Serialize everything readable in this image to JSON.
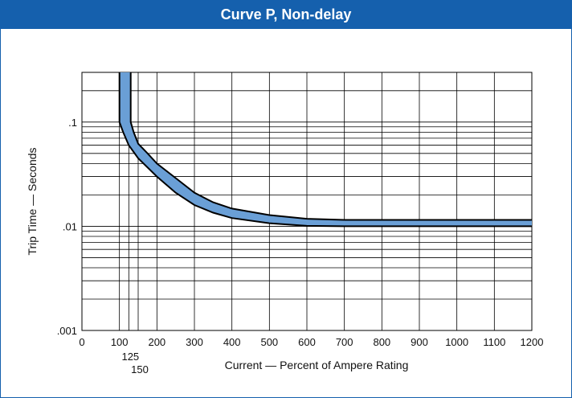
{
  "chart_data": {
    "type": "area",
    "title": "Curve P, Non-delay",
    "xlabel": "Current — Percent of Ampere Rating",
    "ylabel": "Trip Time — Seconds",
    "x_scale": "linear",
    "y_scale": "log",
    "xlim": [
      0,
      1200
    ],
    "ylim": [
      0.001,
      0.3
    ],
    "x_ticks": [
      {
        "value": 0,
        "label": "0"
      },
      {
        "value": 100,
        "label": "100"
      },
      {
        "value": 200,
        "label": "200"
      },
      {
        "value": 300,
        "label": "300"
      },
      {
        "value": 400,
        "label": "400"
      },
      {
        "value": 500,
        "label": "500"
      },
      {
        "value": 600,
        "label": "600"
      },
      {
        "value": 700,
        "label": "700"
      },
      {
        "value": 800,
        "label": "800"
      },
      {
        "value": 900,
        "label": "900"
      },
      {
        "value": 1000,
        "label": "1000"
      },
      {
        "value": 1100,
        "label": "1100"
      },
      {
        "value": 1200,
        "label": "1200"
      }
    ],
    "x_ticks_offset": [
      {
        "value": 125,
        "label": "125"
      },
      {
        "value": 150,
        "label": "150"
      }
    ],
    "y_ticks": [
      {
        "value": 0.1,
        "label": ".1"
      },
      {
        "value": 0.01,
        "label": ".01"
      },
      {
        "value": 0.001,
        "label": ".001"
      }
    ],
    "x_grid": [
      100,
      125,
      150,
      200,
      300,
      400,
      500,
      600,
      700,
      800,
      900,
      1000,
      1100,
      1200
    ],
    "y_grid": [
      0.001,
      0.002,
      0.003,
      0.004,
      0.005,
      0.006,
      0.007,
      0.008,
      0.009,
      0.01,
      0.02,
      0.03,
      0.04,
      0.05,
      0.06,
      0.07,
      0.08,
      0.09,
      0.1,
      0.2
    ],
    "grid": true,
    "band_color": "#6a9fd6",
    "series": [
      {
        "values": [
          [
            100,
            0.3
          ],
          [
            100,
            0.1
          ],
          [
            110,
            0.08
          ],
          [
            125,
            0.06
          ],
          [
            150,
            0.045
          ],
          [
            200,
            0.03
          ],
          [
            250,
            0.021
          ],
          [
            300,
            0.016
          ],
          [
            350,
            0.0135
          ],
          [
            400,
            0.012
          ],
          [
            500,
            0.0107
          ],
          [
            600,
            0.0101
          ],
          [
            700,
            0.01
          ],
          [
            800,
            0.01
          ],
          [
            900,
            0.01
          ],
          [
            1000,
            0.01
          ],
          [
            1100,
            0.01
          ],
          [
            1200,
            0.01
          ]
        ]
      },
      {
        "values": [
          [
            130,
            0.3
          ],
          [
            130,
            0.1
          ],
          [
            138,
            0.08
          ],
          [
            150,
            0.062
          ],
          [
            175,
            0.05
          ],
          [
            200,
            0.04
          ],
          [
            250,
            0.029
          ],
          [
            300,
            0.021
          ],
          [
            350,
            0.017
          ],
          [
            400,
            0.0148
          ],
          [
            500,
            0.0128
          ],
          [
            600,
            0.0118
          ],
          [
            700,
            0.0115
          ],
          [
            800,
            0.0115
          ],
          [
            900,
            0.0115
          ],
          [
            1000,
            0.0115
          ],
          [
            1100,
            0.0115
          ],
          [
            1200,
            0.0115
          ]
        ]
      }
    ]
  }
}
